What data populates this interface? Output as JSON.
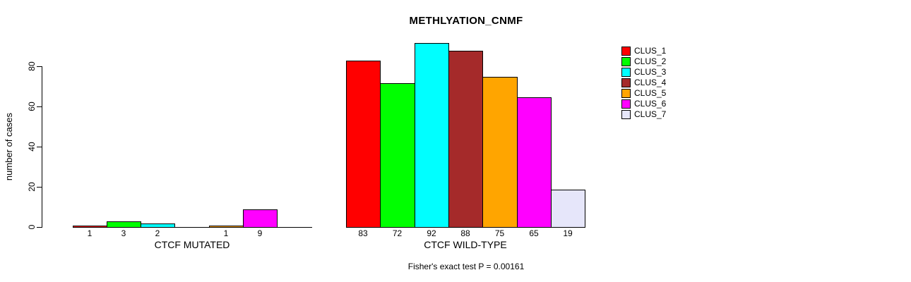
{
  "chart_data": {
    "type": "bar",
    "title": "METHLYATION_CNMF",
    "ylabel": "number of cases",
    "xlabel": "",
    "annotation": "Fisher's exact test P = 0.00161",
    "yticks": [
      0,
      20,
      40,
      60,
      80
    ],
    "ylim": [
      0,
      97
    ],
    "grid": false,
    "legend_position": "right-outside-top",
    "clusters": [
      {
        "name": "CLUS_1",
        "color": "#FF0000"
      },
      {
        "name": "CLUS_2",
        "color": "#00FF00"
      },
      {
        "name": "CLUS_3",
        "color": "#00FFFF"
      },
      {
        "name": "CLUS_4",
        "color": "#A52A2A"
      },
      {
        "name": "CLUS_5",
        "color": "#FFA500"
      },
      {
        "name": "CLUS_6",
        "color": "#FF00FF"
      },
      {
        "name": "CLUS_7",
        "color": "#E6E6FA"
      }
    ],
    "groups": [
      {
        "label": "CTCF MUTATED",
        "values": [
          1,
          3,
          2,
          0,
          1,
          9,
          0
        ]
      },
      {
        "label": "CTCF WILD-TYPE",
        "values": [
          83,
          72,
          92,
          88,
          75,
          65,
          19
        ]
      }
    ]
  }
}
